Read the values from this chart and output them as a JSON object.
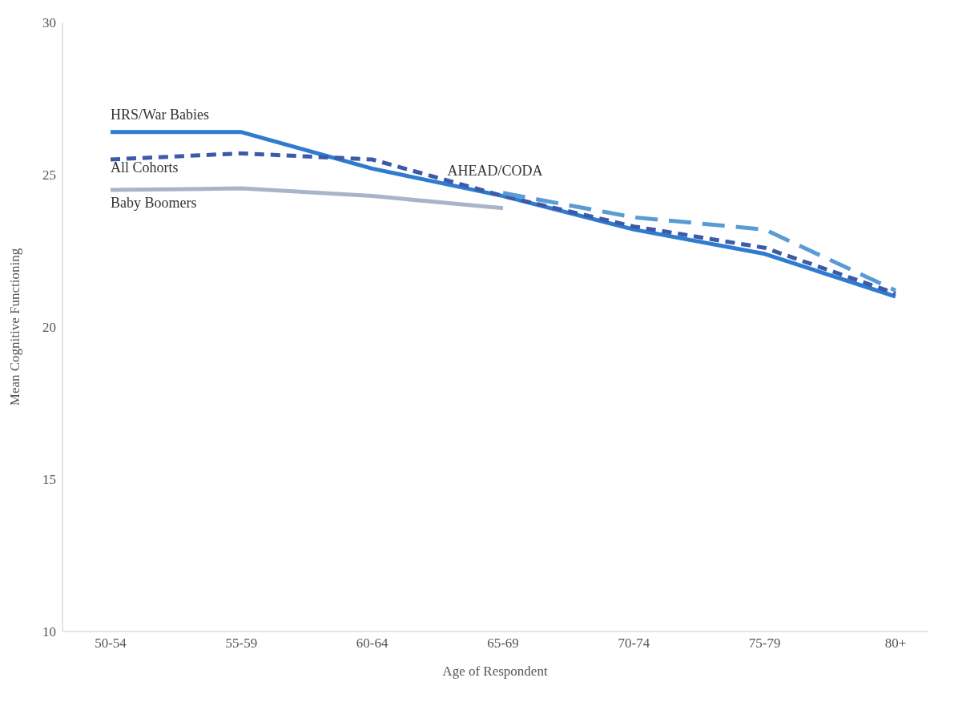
{
  "chart_data": {
    "type": "line",
    "xlabel": "Age of Respondent",
    "ylabel": "Mean Cognitive Functioning",
    "categories": [
      "50-54",
      "55-59",
      "60-64",
      "65-69",
      "70-74",
      "75-79",
      "80+"
    ],
    "ylim": [
      10,
      30
    ],
    "yticks": [
      10,
      15,
      20,
      25,
      30
    ],
    "marker": "none",
    "series": [
      {
        "name": "HRS/War Babies",
        "color": "#2e7bd0",
        "line_style": "solid",
        "values": [
          26.4,
          26.4,
          25.2,
          24.3,
          23.2,
          22.4,
          21.0
        ]
      },
      {
        "name": "All Cohorts",
        "color": "#3d5aa8",
        "line_style": "dotted",
        "values": [
          25.5,
          25.7,
          25.5,
          24.3,
          23.3,
          22.6,
          21.1
        ]
      },
      {
        "name": "Baby Boomers",
        "color": "#aab4c8",
        "line_style": "solid",
        "values": [
          24.5,
          24.55,
          24.3,
          23.9,
          null,
          null,
          null
        ]
      },
      {
        "name": "AHEAD/CODA",
        "color": "#5b9bd5",
        "line_style": "dashed",
        "values": [
          null,
          null,
          null,
          24.4,
          23.6,
          23.2,
          21.2
        ]
      }
    ]
  }
}
